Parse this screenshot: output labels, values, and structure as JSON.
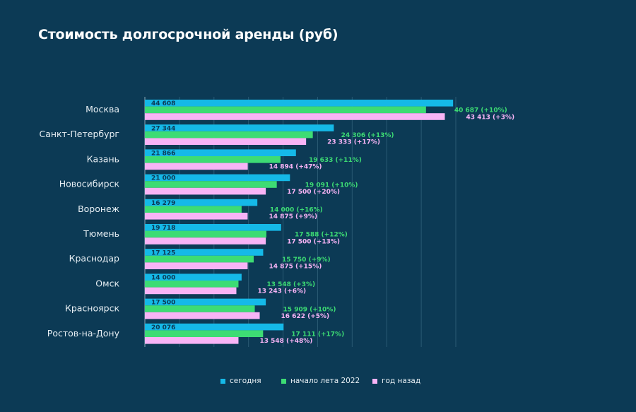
{
  "title": "Стоимость долгосрочной аренды (руб)",
  "chart_data": {
    "type": "bar",
    "orientation": "horizontal",
    "title": "Стоимость долгосрочной аренды (руб)",
    "categories": [
      "Москва",
      "Санкт-Петербург",
      "Казань",
      "Новосибирск",
      "Воронеж",
      "Тюмень",
      "Краснодар",
      "Омск",
      "Красноярск",
      "Ростов-на-Дону"
    ],
    "series": [
      {
        "name": "сегодня",
        "color": "#15b9e8",
        "values": [
          44608,
          27344,
          21866,
          21000,
          16279,
          19718,
          17125,
          14000,
          17500,
          20076
        ],
        "labels": [
          "44 608",
          "27 344",
          "21 866",
          "21 000",
          "16 279",
          "19 718",
          "17 125",
          "14 000",
          "17 500",
          "20 076"
        ]
      },
      {
        "name": "начало лета 2022",
        "color": "#3ddc74",
        "values": [
          40687,
          24306,
          19633,
          19091,
          14000,
          17588,
          15750,
          13548,
          15909,
          17111
        ],
        "labels": [
          "40 687 (+10%)",
          "24 306 (+13%)",
          "19 633 (+11%)",
          "19 091 (+10%)",
          "14 000 (+16%)",
          "17 588 (+12%)",
          "15 750 (+9%)",
          "13 548 (+3%)",
          "15 909 (+10%)",
          "17 111 (+17%)"
        ]
      },
      {
        "name": "год назад",
        "color": "#f8b4f6",
        "values": [
          43413,
          23333,
          14894,
          17500,
          14875,
          17500,
          14875,
          13243,
          16622,
          13548
        ],
        "labels": [
          "43 413 (+3%)",
          "23 333 (+17%)",
          "14 894 (+47%)",
          "17 500 (+20%)",
          "14 875 (+9%)",
          "17 500 (+13%)",
          "14 875 (+15%)",
          "13 243 (+6%)",
          "16 622 (+5%)",
          "13 548 (+48%)"
        ]
      }
    ],
    "xlim": [
      0,
      45000
    ],
    "grid": true,
    "legend": "bottom"
  }
}
